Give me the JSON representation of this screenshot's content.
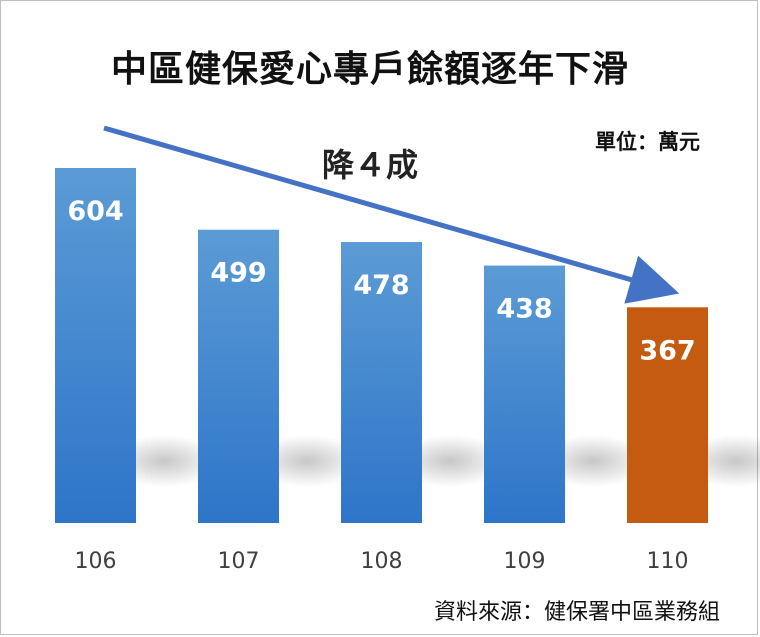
{
  "chart_data": {
    "type": "bar",
    "title": "中區健保愛心專戶餘額逐年下滑",
    "unit_label": "單位：萬元",
    "annotation": "降４成",
    "categories": [
      "106",
      "107",
      "108",
      "109",
      "110"
    ],
    "values": [
      604,
      499,
      478,
      438,
      367
    ],
    "ylim": [
      0,
      610
    ],
    "grid": false,
    "legend": "none",
    "colors": {
      "bar": "#4a90d9",
      "bar_dark": "#2f6fc0",
      "highlight": "#c55a11",
      "arrow": "#4472c4"
    },
    "highlight_category": "110",
    "source": "資料來源：健保署中區業務組"
  }
}
